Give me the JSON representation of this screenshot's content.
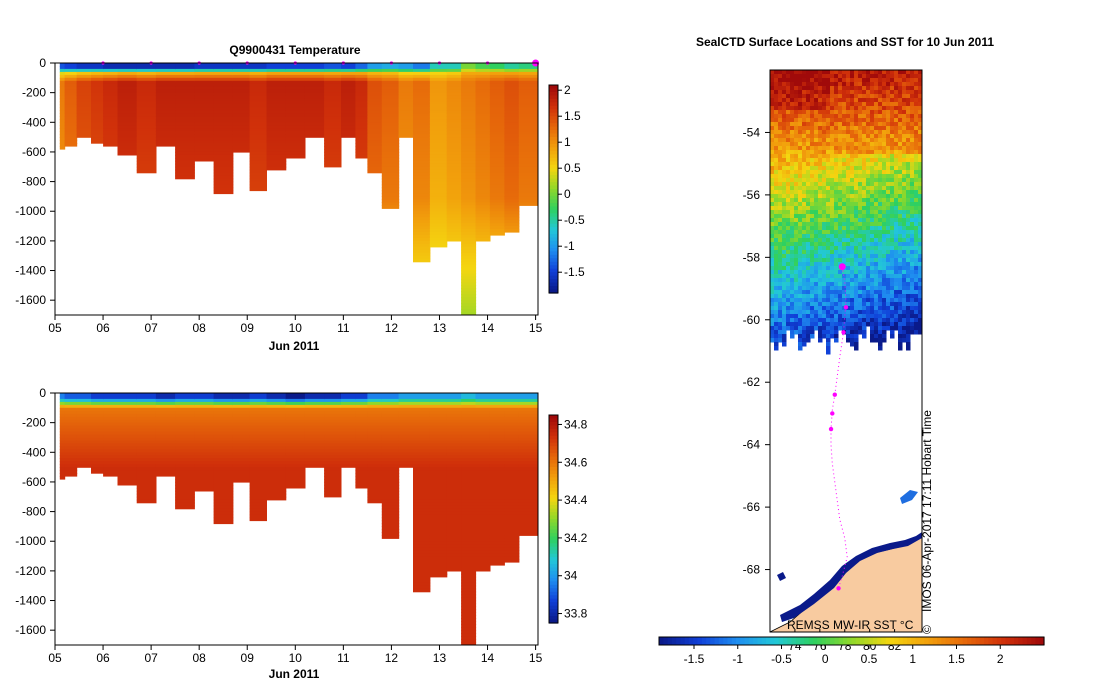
{
  "colors": {
    "temperature_scale": [
      "#0a1a8a",
      "#1040d8",
      "#1f8ef0",
      "#22c8d8",
      "#2ed060",
      "#8fd82a",
      "#f4d610",
      "#f2a00c",
      "#e6670a",
      "#d0300a",
      "#a00a0a"
    ],
    "salinity_scale": [
      "#0a1a8a",
      "#1040d8",
      "#1f8ef0",
      "#22c8d8",
      "#2ed060",
      "#8fd82a",
      "#f4d610",
      "#f2a00c",
      "#e6670a",
      "#d0300a",
      "#a00a0a"
    ],
    "land": "#f8cba0",
    "track": "#ff00ff"
  },
  "chart_data": [
    {
      "type": "heatmap",
      "name": "temperature-section",
      "title": "Q9900431  Temperature",
      "xlabel": "Jun 2011",
      "x_tick_labels": [
        "05",
        "06",
        "07",
        "08",
        "09",
        "10",
        "11",
        "12",
        "13",
        "14",
        "15"
      ],
      "x_ticks": [
        5,
        6,
        7,
        8,
        9,
        10,
        11,
        12,
        13,
        14,
        15
      ],
      "xlim": [
        5,
        15.05
      ],
      "y_tick_labels": [
        "0",
        "-200",
        "-400",
        "-600",
        "-800",
        "-1000",
        "-1200",
        "-1400",
        "-1600"
      ],
      "y_ticks": [
        0,
        -200,
        -400,
        -600,
        -800,
        -1000,
        -1200,
        -1400,
        -1600
      ],
      "ylim": [
        -1700,
        0
      ],
      "colorbar": {
        "tick_labels": [
          "2",
          "1.5",
          "1",
          "0.5",
          "0",
          "-0.5",
          "-1",
          "-1.5"
        ],
        "ticks": [
          2,
          1.5,
          1,
          0.5,
          0,
          -0.5,
          -1,
          -1.5
        ],
        "range": [
          -1.9,
          2.1
        ]
      },
      "profile_times": [
        5.1,
        5.3,
        5.6,
        5.9,
        6.1,
        6.5,
        6.9,
        7.3,
        7.7,
        8.1,
        8.5,
        8.9,
        9.2,
        9.6,
        10.0,
        10.4,
        10.8,
        11.1,
        11.4,
        11.6,
        12.0,
        12.3,
        12.6,
        13.0,
        13.3,
        13.6,
        13.9,
        14.2,
        14.5,
        14.8
      ],
      "max_depths": [
        -580,
        -560,
        -500,
        -530,
        -560,
        -620,
        -730,
        -550,
        -780,
        -650,
        -870,
        -600,
        -860,
        -720,
        -630,
        -500,
        -690,
        -500,
        -640,
        -740,
        -970,
        -500,
        -1330,
        -1240,
        -1200,
        -1700,
        -1200,
        -1160,
        -1130,
        -960
      ],
      "surface_temps": [
        -1.4,
        -1.5,
        -1.6,
        -1.6,
        -1.7,
        -1.7,
        -1.7,
        -1.7,
        -1.7,
        -1.6,
        -1.6,
        -1.6,
        -1.6,
        -1.5,
        -1.5,
        -1.5,
        -1.4,
        -1.5,
        -1.3,
        -1.0,
        -0.9,
        -1.0,
        -1.2,
        -0.6,
        -0.6,
        0.0,
        -0.2,
        -0.3,
        -0.5,
        -0.4
      ],
      "deep_temps": [
        1.2,
        1.4,
        1.6,
        1.7,
        1.8,
        1.9,
        1.8,
        1.9,
        1.9,
        1.9,
        1.9,
        1.9,
        1.8,
        1.9,
        1.9,
        1.9,
        1.8,
        1.9,
        1.8,
        1.5,
        1.4,
        1.2,
        1.3,
        1.0,
        1.1,
        1.2,
        1.3,
        1.4,
        1.5,
        1.4
      ],
      "deep_temps_below_1000m": [
        0.8,
        0.7,
        0.6,
        0.7,
        0.8
      ],
      "markers": [
        6,
        7,
        8,
        9,
        10,
        11,
        12,
        13,
        14,
        15
      ]
    },
    {
      "type": "heatmap",
      "name": "salinity-section",
      "title": "",
      "xlabel": "Jun 2011",
      "x_tick_labels": [
        "05",
        "06",
        "07",
        "08",
        "09",
        "10",
        "11",
        "12",
        "13",
        "14",
        "15"
      ],
      "x_ticks": [
        5,
        6,
        7,
        8,
        9,
        10,
        11,
        12,
        13,
        14,
        15
      ],
      "xlim": [
        5,
        15.05
      ],
      "y_tick_labels": [
        "0",
        "-200",
        "-400",
        "-600",
        "-800",
        "-1000",
        "-1200",
        "-1400",
        "-1600"
      ],
      "y_ticks": [
        0,
        -200,
        -400,
        -600,
        -800,
        -1000,
        -1200,
        -1400,
        -1600
      ],
      "ylim": [
        -1700,
        0
      ],
      "colorbar": {
        "tick_labels": [
          "34.8",
          "34.6",
          "34.4",
          "34.2",
          "34",
          "33.8"
        ],
        "ticks": [
          34.8,
          34.6,
          34.4,
          34.2,
          34,
          33.8
        ],
        "range": [
          33.75,
          34.85
        ]
      },
      "surface_salinity": [
        33.95,
        33.9,
        33.9,
        33.85,
        33.85,
        33.85,
        33.85,
        33.8,
        33.85,
        33.85,
        33.8,
        33.8,
        33.85,
        33.8,
        33.75,
        33.8,
        33.8,
        33.85,
        33.85,
        33.95,
        33.95,
        34.0,
        34.0,
        34.0,
        34.0,
        34.05,
        34.0,
        34.0,
        34.0,
        34.0
      ],
      "deep_salinity": 34.75
    },
    {
      "type": "heatmap",
      "name": "sst-map",
      "title": "SealCTD Surface Locations and SST for 10 Jun 2011",
      "y_tick_labels": [
        "-54",
        "-56",
        "-58",
        "-60",
        "-62",
        "-64",
        "-66",
        "-68"
      ],
      "y_ticks": [
        -54,
        -56,
        -58,
        -60,
        -62,
        -64,
        -66,
        -68
      ],
      "ylim": [
        -70,
        -52
      ],
      "x_tick_labels": [
        "74",
        "76",
        "78",
        "80",
        "82"
      ],
      "x_ticks": [
        74,
        76,
        78,
        80,
        82
      ],
      "xlim": [
        72,
        84
      ],
      "colorbar": {
        "tick_labels": [
          "-1.5",
          "-1",
          "-0.5",
          "0",
          "0.5",
          "1",
          "1.5",
          "2"
        ],
        "ticks": [
          -1.5,
          -1,
          -0.5,
          0,
          0.5,
          1,
          1.5,
          2
        ],
        "range": [
          -1.9,
          2.5
        ]
      },
      "sst_credit": "REMSS MW-IR SST °C",
      "timestamp": "IMOS 06-Apr-2017 17:11 Hobart Time",
      "copyright": "©",
      "track_lat": [
        -58.3,
        -58.8,
        -59.4,
        -59.9,
        -60.4,
        -61.2,
        -61.8,
        -62.4,
        -62.9,
        -63.5,
        -64.0,
        -64.6,
        -65.2,
        -65.8,
        -66.4,
        -67.0,
        -67.6,
        -68.2,
        -68.6
      ],
      "track_lon": [
        77.8,
        78.0,
        78.1,
        78.0,
        77.9,
        77.6,
        77.4,
        77.2,
        77.0,
        76.9,
        76.9,
        77.0,
        77.2,
        77.4,
        77.6,
        78.0,
        78.2,
        77.8,
        77.5
      ],
      "surface_positions_lat": [
        -58.3,
        -59.6,
        -60.4,
        -62.4,
        -63.0,
        -63.5,
        -68.6
      ],
      "surface_positions_lon": [
        77.8,
        78.1,
        77.9,
        77.2,
        77.0,
        76.9,
        77.5
      ]
    }
  ]
}
